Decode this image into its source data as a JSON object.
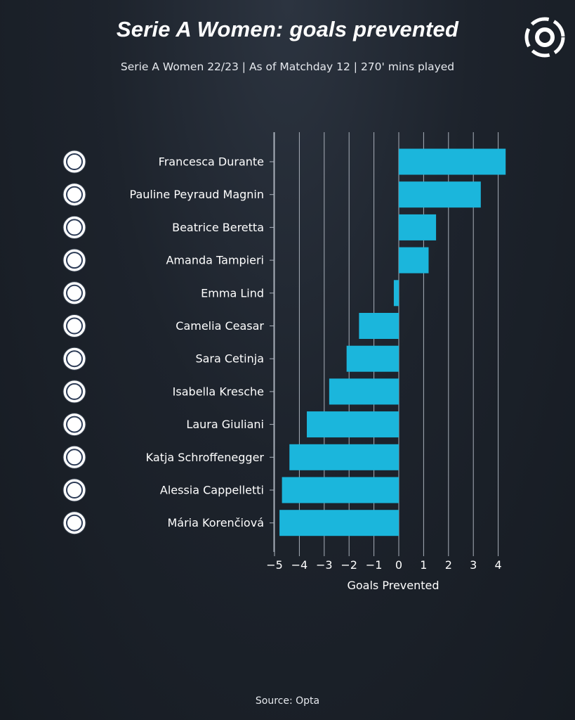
{
  "header": {
    "title": "Serie A Women: goals prevented",
    "subtitle": "Serie A Women 22/23 |  As of Matchday 12 | 270' mins played"
  },
  "footer": {
    "source": "Source: Opta"
  },
  "colors": {
    "bar": "#1bb6dc",
    "grid": "#a9b0ba",
    "text": "#ffffff",
    "background": "#1d232c"
  },
  "chart_data": {
    "type": "bar",
    "orientation": "horizontal",
    "xlabel": "Goals Prevented",
    "xlim": [
      -5,
      4.3
    ],
    "xticks": [
      -5,
      -4,
      -3,
      -2,
      -1,
      0,
      1,
      2,
      3,
      4
    ],
    "xtick_labels": [
      "−5",
      "−4",
      "−3",
      "−2",
      "−1",
      "0",
      "1",
      "2",
      "3",
      "4"
    ],
    "grid": "vertical",
    "categories": [
      "Francesca Durante",
      "Pauline Peyraud Magnin",
      "Beatrice Beretta",
      "Amanda Tampieri",
      "Emma Lind",
      "Camelia Ceasar",
      "Sara Cetinja",
      "Isabella Kresche",
      "Laura Giuliani",
      "Katja Schroffenegger",
      "Alessia Cappelletti",
      "Mária Korenčiová"
    ],
    "team_icons": [
      "inter-crest-icon",
      "juventus-crest-icon",
      "pomigliano-shield-icon",
      "sampdoria-crest-icon",
      "roma-crest-icon",
      "roma-crest-icon",
      "pomigliano-crest-icon",
      "sassuolo-crest-icon",
      "milan-crest-icon",
      "fiorentina-crest-icon",
      "parma-crest-icon",
      "pomigliano-shield-icon"
    ],
    "values": [
      4.3,
      3.3,
      1.5,
      1.2,
      -0.2,
      -1.6,
      -2.1,
      -2.8,
      -3.7,
      -4.4,
      -4.7,
      -4.8
    ]
  }
}
